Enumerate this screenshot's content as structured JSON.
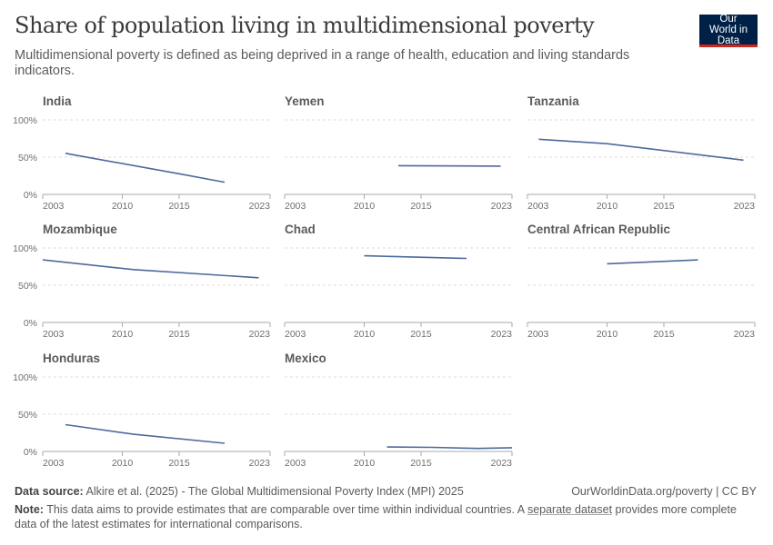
{
  "header": {
    "title": "Share of population living in multidimensional poverty",
    "subtitle": "Multidimensional poverty is defined as being deprived in a range of health, education and living standards indicators.",
    "logo": "Our World in Data"
  },
  "footer": {
    "source_label": "Data source:",
    "source": "Alkire et al. (2025) - The Global Multidimensional Poverty Index (MPI) 2025",
    "url": "OurWorldinData.org/poverty | CC BY",
    "note_label": "Note:",
    "note_before": "This data aims to provide estimates that are comparable over time within individual countries. A ",
    "note_link": "separate dataset",
    "note_after": " provides more complete data of the latest estimates for international comparisons."
  },
  "chart_data": {
    "type": "line",
    "layout": "small-multiples",
    "line_color": "#4c6a9c",
    "xlim": [
      2003,
      2023
    ],
    "ylim": [
      0,
      100
    ],
    "x_ticks": [
      "2003",
      "2010",
      "2015",
      "2023"
    ],
    "y_ticks": [
      "0%",
      "50%",
      "100%"
    ],
    "grid": "horizontal-dotted",
    "panels": [
      {
        "name": "India",
        "x": [
          2005,
          2015,
          2019
        ],
        "y": [
          55.1,
          27.7,
          16.4
        ]
      },
      {
        "name": "Yemen",
        "x": [
          2013,
          2022
        ],
        "y": [
          38.5,
          37.9
        ]
      },
      {
        "name": "Tanzania",
        "x": [
          2004,
          2010,
          2022
        ],
        "y": [
          74,
          68,
          46
        ]
      },
      {
        "name": "Mozambique",
        "x": [
          2003,
          2011,
          2022
        ],
        "y": [
          84,
          71,
          60
        ]
      },
      {
        "name": "Chad",
        "x": [
          2010,
          2019
        ],
        "y": [
          89.5,
          86
        ]
      },
      {
        "name": "Central African Republic",
        "x": [
          2010,
          2018
        ],
        "y": [
          78.8,
          84
        ]
      },
      {
        "name": "Honduras",
        "x": [
          2005,
          2011,
          2019
        ],
        "y": [
          36,
          23,
          11
        ]
      },
      {
        "name": "Mexico",
        "x": [
          2012,
          2016,
          2020,
          2023
        ],
        "y": [
          6,
          5.5,
          4,
          5
        ]
      }
    ]
  }
}
